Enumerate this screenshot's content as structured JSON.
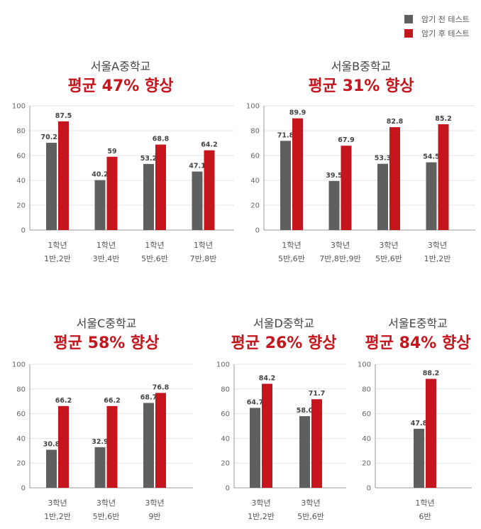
{
  "legend": {
    "items": [
      {
        "label": "암기 전 테스트",
        "color": "#5f5f5f"
      },
      {
        "label": "암기 후 테스트",
        "color": "#c4161c"
      }
    ]
  },
  "colors": {
    "before": "#5f5f5f",
    "after": "#c4161c",
    "axis": "#999999",
    "grid": "#e4e4e4",
    "subtitle": "#c4161c"
  },
  "chart_data": [
    {
      "type": "bar",
      "title": "서울A중학교",
      "subtitle": "평균 47% 향상",
      "categories": [
        [
          "1학년",
          "1반,2반"
        ],
        [
          "1학년",
          "3반,4반"
        ],
        [
          "1학년",
          "5반,6반"
        ],
        [
          "1학년",
          "7반,8반"
        ]
      ],
      "series": [
        {
          "name": "암기 전 테스트",
          "values": [
            70.25,
            40.2,
            53.2,
            47.1
          ],
          "labels": [
            "70.25",
            "40.2",
            "53.2",
            "47.1"
          ]
        },
        {
          "name": "암기 후 테스트",
          "values": [
            87.5,
            59,
            68.8,
            64.2
          ],
          "labels": [
            "87.5",
            "59",
            "68.8",
            "64.2"
          ]
        }
      ],
      "ylim": [
        0,
        100
      ],
      "yticks": [
        "0",
        "20",
        "40",
        "60",
        "80",
        "100"
      ]
    },
    {
      "type": "bar",
      "title": "서울B중학교",
      "subtitle": "평균 31% 향상",
      "categories": [
        [
          "1학년",
          "5반,6반"
        ],
        [
          "3학년",
          "7반,8반,9반"
        ],
        [
          "3학년",
          "5반,6반"
        ],
        [
          "3학년",
          "1반,2반"
        ]
      ],
      "series": [
        {
          "name": "암기 전 테스트",
          "values": [
            71.8,
            39.5,
            53.3,
            54.5
          ],
          "labels": [
            "71.8",
            "39.5",
            "53.3",
            "54.5"
          ]
        },
        {
          "name": "암기 후 테스트",
          "values": [
            89.9,
            67.9,
            82.8,
            85.2
          ],
          "labels": [
            "89.9",
            "67.9",
            "82.8",
            "85.2"
          ]
        }
      ],
      "ylim": [
        0,
        100
      ],
      "yticks": [
        "0",
        "20",
        "40",
        "60",
        "80",
        "100"
      ]
    },
    {
      "type": "bar",
      "title": "서울C중학교",
      "subtitle": "평균 58% 향상",
      "categories": [
        [
          "3학년",
          "1반,2반"
        ],
        [
          "3학년",
          "5반,6반"
        ],
        [
          "3학년",
          "9반"
        ]
      ],
      "series": [
        {
          "name": "암기 전 테스트",
          "values": [
            30.8,
            32.9,
            68.7
          ],
          "labels": [
            "30.8",
            "32.9",
            "68.7"
          ]
        },
        {
          "name": "암기 후 테스트",
          "values": [
            66.2,
            66.2,
            76.8
          ],
          "labels": [
            "66.2",
            "66.2",
            "76.8"
          ]
        }
      ],
      "ylim": [
        0,
        100
      ],
      "yticks": [
        "0",
        "20",
        "40",
        "60",
        "80",
        "100"
      ]
    },
    {
      "type": "bar",
      "title": "서울D중학교",
      "subtitle": "평균 26% 향상",
      "categories": [
        [
          "3학년",
          "1반,2반"
        ],
        [
          "3학년",
          "5반,6반"
        ]
      ],
      "series": [
        {
          "name": "암기 전 테스트",
          "values": [
            64.7,
            58.0
          ],
          "labels": [
            "64.7",
            "58.0"
          ]
        },
        {
          "name": "암기 후 테스트",
          "values": [
            84.2,
            71.7
          ],
          "labels": [
            "84.2",
            "71.7"
          ]
        }
      ],
      "ylim": [
        0,
        100
      ],
      "yticks": [
        "0",
        "20",
        "40",
        "60",
        "80",
        "100"
      ]
    },
    {
      "type": "bar",
      "title": "서울E중학교",
      "subtitle": "평균 84% 향상",
      "categories": [
        [
          "1학년",
          "6반"
        ]
      ],
      "series": [
        {
          "name": "암기 전 테스트",
          "values": [
            47.8
          ],
          "labels": [
            "47.8"
          ]
        },
        {
          "name": "암기 후 테스트",
          "values": [
            88.2
          ],
          "labels": [
            "88.2"
          ]
        }
      ],
      "ylim": [
        0,
        100
      ],
      "yticks": [
        "0",
        "20",
        "40",
        "60",
        "80",
        "100"
      ]
    }
  ]
}
